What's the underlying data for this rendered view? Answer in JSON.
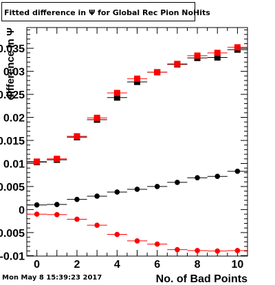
{
  "header": {
    "title": "Fitted difference in Ψ  for Global Rec Pion NoHits"
  },
  "footer": {
    "timestamp": "Mon May  8 15:39:23 2017"
  },
  "chart_data": {
    "type": "scatter",
    "title": "Fitted difference in Ψ  for Global Rec Pion NoHits",
    "xlabel": "No. of Bad Points",
    "ylabel": "difference in Ψ",
    "xlim": [
      -0.5,
      10.5
    ],
    "ylim": [
      -0.0101,
      0.0395
    ],
    "grid": false,
    "x_ticks": [
      0,
      2,
      4,
      6,
      8,
      10
    ],
    "x_tick_labels": [
      "0",
      "2",
      "4",
      "6",
      "8",
      "10"
    ],
    "y_ticks": [
      -0.01,
      -0.005,
      0,
      0.005,
      0.01,
      0.015,
      0.02,
      0.025,
      0.03,
      0.035
    ],
    "y_tick_labels": [
      "-0.01",
      "-0.005",
      "0",
      "0.005",
      "0.01",
      "0.015",
      "0.02",
      "0.025",
      "0.03",
      "0.035"
    ],
    "x": [
      0,
      1,
      2,
      3,
      4,
      5,
      6,
      7,
      8,
      9,
      10
    ],
    "series": [
      {
        "marker": "square",
        "color": "#000000",
        "values": [
          0.0103,
          0.0108,
          0.0157,
          0.0195,
          0.0243,
          0.0277,
          0.0298,
          0.0315,
          0.0329,
          0.033,
          0.0347
        ]
      },
      {
        "marker": "square",
        "color": "#ff0000",
        "values": [
          0.0104,
          0.011,
          0.0159,
          0.0199,
          0.0253,
          0.0284,
          0.0298,
          0.0316,
          0.0334,
          0.034,
          0.0352
        ]
      },
      {
        "marker": "circle",
        "color": "#000000",
        "values": [
          0.001,
          0.0011,
          0.0022,
          0.0029,
          0.0038,
          0.0044,
          0.005,
          0.0059,
          0.0069,
          0.0072,
          0.0083
        ]
      },
      {
        "marker": "circle",
        "color": "#ff0000",
        "values": [
          -0.001,
          -0.0011,
          -0.0021,
          -0.0034,
          -0.0054,
          -0.0068,
          -0.0075,
          -0.0087,
          -0.0089,
          -0.009,
          -0.0089
        ]
      }
    ]
  }
}
